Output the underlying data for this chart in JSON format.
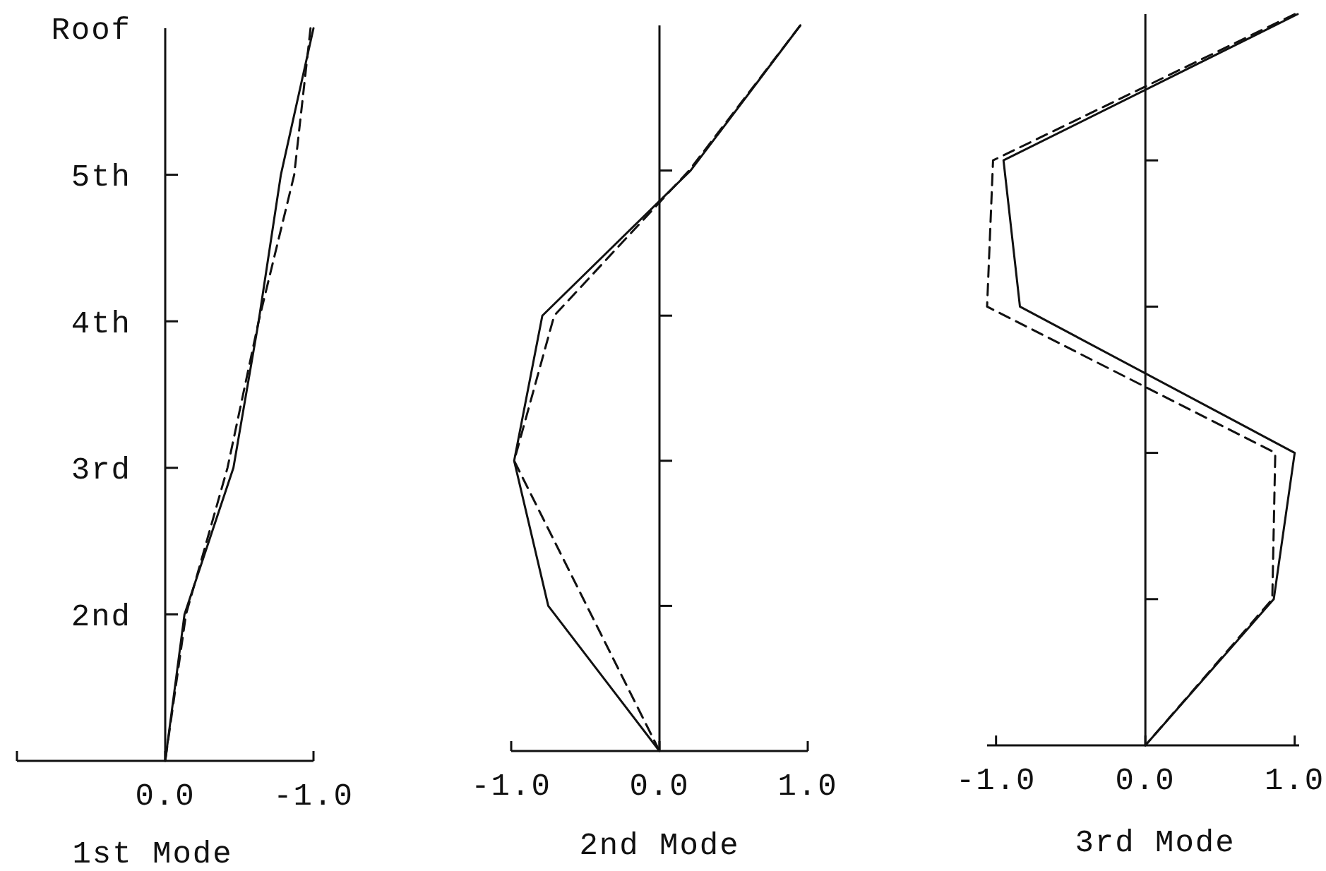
{
  "chart_data": [
    {
      "type": "line",
      "orientation": "horizontal",
      "xlabel": "1st Mode",
      "categories": [
        "Roof",
        "5th",
        "4th",
        "3rd",
        "2nd",
        null
      ],
      "xlim": [
        1.0,
        -1.0
      ],
      "xticks": [
        {
          "value": 1.0,
          "label": null
        },
        {
          "value": 0.0,
          "label": "0.0"
        },
        {
          "value": -1.0,
          "label": "-1.0"
        }
      ],
      "series": [
        {
          "color": "#111111",
          "line_style": "solid",
          "values": [
            -1.0,
            -0.78,
            -0.63,
            -0.46,
            -0.13,
            0
          ]
        },
        {
          "color": "#111111",
          "line_style": "dashed",
          "values": [
            -0.98,
            -0.87,
            -0.63,
            -0.42,
            -0.14,
            0
          ]
        }
      ]
    },
    {
      "type": "line",
      "orientation": "horizontal",
      "xlabel": "2nd Mode",
      "categories": [
        null,
        null,
        null,
        null,
        null,
        null
      ],
      "xlim": [
        -1.0,
        1.0
      ],
      "xticks": [
        {
          "value": -1.0,
          "label": "-1.0"
        },
        {
          "value": 0.0,
          "label": "0.0"
        },
        {
          "value": 1.0,
          "label": "1.0"
        }
      ],
      "series": [
        {
          "color": "#111111",
          "line_style": "solid",
          "values": [
            0.95,
            0.21,
            -0.79,
            -0.98,
            -0.75,
            0
          ]
        },
        {
          "color": "#111111",
          "line_style": "dashed",
          "values": [
            0.95,
            0.2,
            -0.71,
            -0.98,
            -0.49,
            0
          ]
        }
      ]
    },
    {
      "type": "line",
      "orientation": "horizontal",
      "xlabel": "3rd Mode",
      "categories": [
        null,
        null,
        null,
        null,
        null,
        null
      ],
      "xlim": [
        -1.06,
        1.03
      ],
      "xticks": [
        {
          "value": -1.0,
          "label": "-1.0"
        },
        {
          "value": 0.0,
          "label": "0.0"
        },
        {
          "value": 1.0,
          "label": "1.0"
        }
      ],
      "series": [
        {
          "color": "#111111",
          "line_style": "solid",
          "values": [
            1.02,
            -0.95,
            -0.84,
            1.0,
            0.86,
            0
          ]
        },
        {
          "color": "#111111",
          "line_style": "dashed",
          "values": [
            1.0,
            -1.02,
            -1.06,
            0.87,
            0.85,
            0
          ]
        }
      ]
    }
  ]
}
